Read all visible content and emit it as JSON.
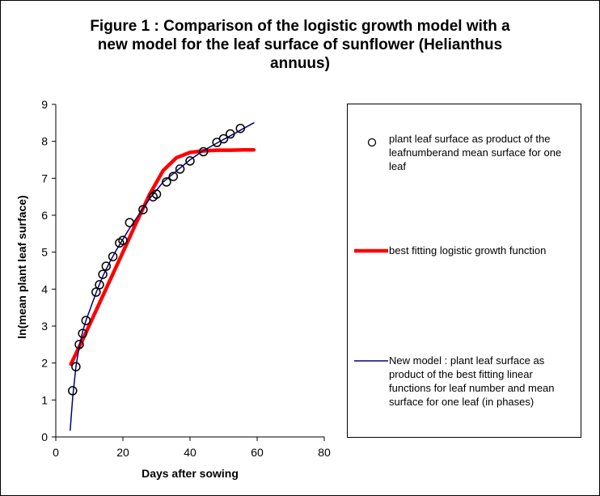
{
  "chart_data": {
    "type": "scatter",
    "title_lines": [
      "Figure 1 : Comparison of the logistic growth model with  a",
      "new model for the leaf surface of sunflower (Helianthus",
      "annuus)"
    ],
    "xlabel": "Days after sowing",
    "ylabel": "ln(mean plant leaf surface)",
    "xlim": [
      0,
      80
    ],
    "ylim": [
      0,
      9
    ],
    "xticks": [
      0,
      20,
      40,
      60,
      80
    ],
    "yticks": [
      0,
      1,
      2,
      3,
      4,
      5,
      6,
      7,
      8,
      9
    ],
    "grid": false,
    "legend_position": "right",
    "series": [
      {
        "name": "plant leaf surface as product of the leafnumberand mean surface for one leaf",
        "kind": "markers",
        "marker": "open-circle",
        "color": "#000000",
        "x": [
          5,
          6,
          7,
          8,
          9,
          12,
          13,
          14,
          15,
          17,
          19,
          20,
          22,
          26,
          29,
          30,
          33,
          35,
          37,
          40,
          44,
          48,
          50,
          52,
          55
        ],
        "y": [
          1.25,
          1.9,
          2.5,
          2.8,
          3.15,
          3.92,
          4.12,
          4.4,
          4.62,
          4.88,
          5.25,
          5.32,
          5.8,
          6.15,
          6.5,
          6.57,
          6.9,
          7.05,
          7.25,
          7.47,
          7.72,
          7.97,
          8.07,
          8.2,
          8.35
        ]
      },
      {
        "name": "best fitting logistic growth function",
        "kind": "line",
        "color": "#ff0000",
        "x": [
          4.5,
          8,
          12,
          16,
          20,
          24,
          28,
          32,
          36,
          40,
          44,
          48,
          52,
          56,
          59
        ],
        "y": [
          1.97,
          2.63,
          3.42,
          4.21,
          5.0,
          5.8,
          6.57,
          7.21,
          7.56,
          7.7,
          7.74,
          7.76,
          7.76,
          7.77,
          7.77
        ]
      },
      {
        "name": "New model : plant leaf surface as product of the best fitting linear functions for leaf number and mean surface for one leaf (in phases)",
        "kind": "line",
        "color": "#000080",
        "x": [
          4.3,
          5,
          6,
          7,
          8,
          9,
          10,
          12,
          14,
          16,
          18,
          20,
          22,
          25,
          28,
          32,
          36,
          40,
          44,
          48,
          52,
          56,
          59
        ],
        "y": [
          0.18,
          1.05,
          1.9,
          2.45,
          2.85,
          3.15,
          3.4,
          3.9,
          4.35,
          4.72,
          5.05,
          5.35,
          5.65,
          6.05,
          6.45,
          6.9,
          7.2,
          7.5,
          7.75,
          7.95,
          8.15,
          8.35,
          8.5
        ]
      }
    ]
  }
}
